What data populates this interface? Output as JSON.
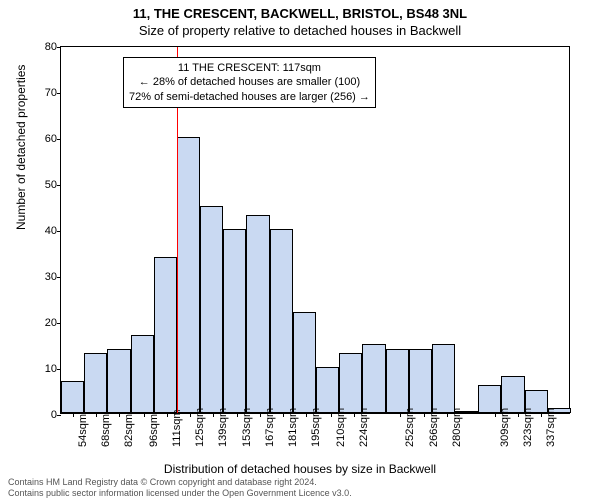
{
  "chart": {
    "type": "histogram",
    "title_line1": "11, THE CRESCENT, BACKWELL, BRISTOL, BS48 3NL",
    "title_line2": "Size of property relative to detached houses in Backwell",
    "ylabel": "Number of detached properties",
    "xlabel": "Distribution of detached houses by size in Backwell",
    "background_color": "#ffffff",
    "bar_fill": "#c9d9f2",
    "bar_border": "#000000",
    "refline_color": "#ff0000",
    "refline_x_value": 117,
    "x_start": 47,
    "x_bin_width": 14,
    "ylim": [
      0,
      80
    ],
    "ytick_step": 10,
    "title_fontsize": 13,
    "label_fontsize": 12,
    "tick_fontsize": 11,
    "x_tick_labels": [
      "54sqm",
      "68sqm",
      "82sqm",
      "96sqm",
      "111sqm",
      "125sqm",
      "139sqm",
      "153sqm",
      "167sqm",
      "181sqm",
      "195sqm",
      "210sqm",
      "224sqm",
      "252sqm",
      "266sqm",
      "280sqm",
      "309sqm",
      "323sqm",
      "337sqm"
    ],
    "x_tick_positions": [
      54,
      68,
      82,
      97,
      111,
      125,
      139,
      153,
      167,
      181,
      195,
      210,
      224,
      252,
      266,
      280,
      309,
      323,
      337
    ],
    "values": [
      7,
      13,
      14,
      17,
      34,
      60,
      45,
      40,
      43,
      40,
      22,
      10,
      13,
      15,
      14,
      14,
      15,
      0,
      6,
      8,
      5,
      1
    ],
    "annotation": {
      "line1": "11 THE CRESCENT: 117sqm",
      "line2": "← 28% of detached houses are smaller (100)",
      "line3": "72% of semi-detached houses are larger (256) →"
    },
    "footer_line1": "Contains HM Land Registry data © Crown copyright and database right 2024.",
    "footer_line2": "Contains public sector information licensed under the Open Government Licence v3.0."
  }
}
